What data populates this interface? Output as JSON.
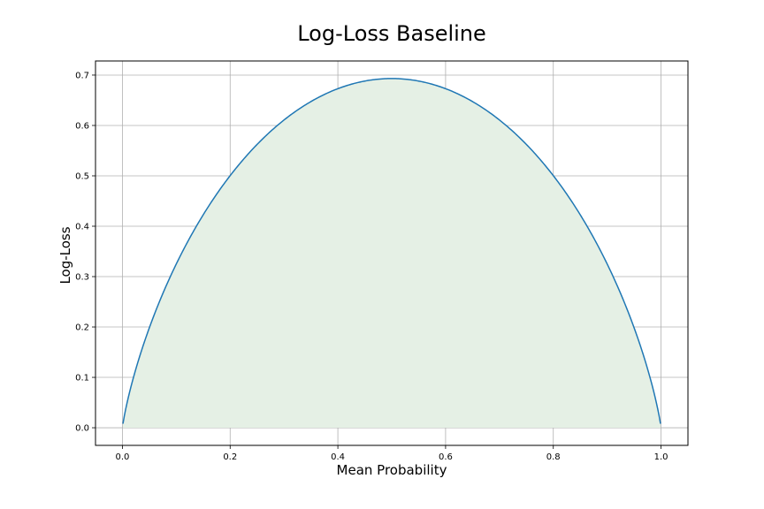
{
  "chart_data": {
    "type": "area",
    "title": "Log-Loss Baseline",
    "xlabel": "Mean Probability",
    "ylabel": "Log-Loss",
    "xlim": [
      -0.05,
      1.05
    ],
    "ylim": [
      -0.035,
      0.728
    ],
    "x_ticks": [
      0.0,
      0.2,
      0.4,
      0.6,
      0.8,
      1.0
    ],
    "x_tick_labels": [
      "0.0",
      "0.2",
      "0.4",
      "0.6",
      "0.8",
      "1.0"
    ],
    "y_ticks": [
      0.0,
      0.1,
      0.2,
      0.3,
      0.4,
      0.5,
      0.6,
      0.7
    ],
    "y_tick_labels": [
      "0.0",
      "0.1",
      "0.2",
      "0.3",
      "0.4",
      "0.5",
      "0.6",
      "0.7"
    ],
    "grid": true,
    "legend": "none",
    "line_color": "#1f77b4",
    "fill_color": "#e5f0e5",
    "series": [
      {
        "x": [
          0.001,
          0.005,
          0.01,
          0.02,
          0.03,
          0.05,
          0.07,
          0.1,
          0.15,
          0.2,
          0.25,
          0.3,
          0.35,
          0.4,
          0.45,
          0.5,
          0.55,
          0.6,
          0.65,
          0.7,
          0.75,
          0.8,
          0.85,
          0.9,
          0.93,
          0.95,
          0.97,
          0.98,
          0.99,
          0.995,
          0.999
        ],
        "y": [
          0.008,
          0.031,
          0.056,
          0.098,
          0.135,
          0.199,
          0.254,
          0.325,
          0.423,
          0.5,
          0.562,
          0.611,
          0.647,
          0.673,
          0.688,
          0.693,
          0.688,
          0.673,
          0.647,
          0.611,
          0.562,
          0.5,
          0.423,
          0.325,
          0.254,
          0.199,
          0.135,
          0.098,
          0.056,
          0.031,
          0.008
        ]
      }
    ]
  }
}
